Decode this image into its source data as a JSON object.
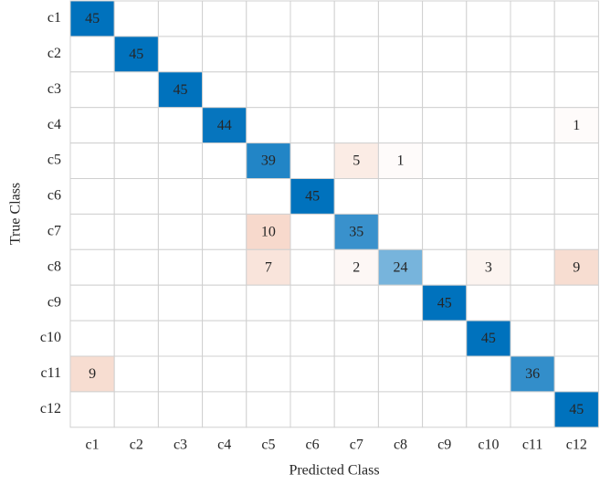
{
  "chart_data": {
    "type": "heatmap",
    "xlabel": "Predicted Class",
    "ylabel": "True Class",
    "categories": [
      "c1",
      "c2",
      "c3",
      "c4",
      "c5",
      "c6",
      "c7",
      "c8",
      "c9",
      "c10",
      "c11",
      "c12"
    ],
    "diagonal_color": "#0072bd",
    "off_diagonal_color": "#d95319",
    "matrix": [
      [
        45,
        0,
        0,
        0,
        0,
        0,
        0,
        0,
        0,
        0,
        0,
        0
      ],
      [
        0,
        45,
        0,
        0,
        0,
        0,
        0,
        0,
        0,
        0,
        0,
        0
      ],
      [
        0,
        0,
        45,
        0,
        0,
        0,
        0,
        0,
        0,
        0,
        0,
        0
      ],
      [
        0,
        0,
        0,
        44,
        0,
        0,
        0,
        0,
        0,
        0,
        0,
        1
      ],
      [
        0,
        0,
        0,
        0,
        39,
        0,
        5,
        1,
        0,
        0,
        0,
        0
      ],
      [
        0,
        0,
        0,
        0,
        0,
        45,
        0,
        0,
        0,
        0,
        0,
        0
      ],
      [
        0,
        0,
        0,
        0,
        10,
        0,
        35,
        0,
        0,
        0,
        0,
        0
      ],
      [
        0,
        0,
        0,
        0,
        7,
        0,
        2,
        24,
        0,
        3,
        0,
        9
      ],
      [
        0,
        0,
        0,
        0,
        0,
        0,
        0,
        0,
        45,
        0,
        0,
        0
      ],
      [
        0,
        0,
        0,
        0,
        0,
        0,
        0,
        0,
        0,
        45,
        0,
        0
      ],
      [
        9,
        0,
        0,
        0,
        0,
        0,
        0,
        0,
        0,
        0,
        36,
        0
      ],
      [
        0,
        0,
        0,
        0,
        0,
        0,
        0,
        0,
        0,
        0,
        0,
        45
      ]
    ]
  }
}
